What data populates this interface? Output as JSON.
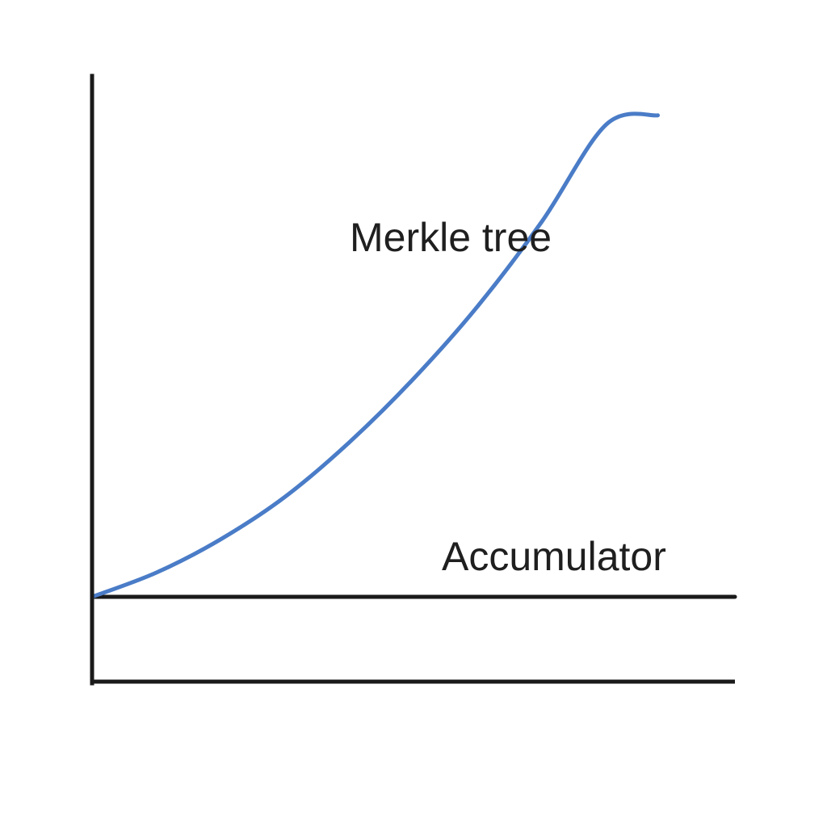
{
  "chart_data": {
    "type": "line",
    "title": "",
    "xlabel": "",
    "ylabel": "",
    "grid": false,
    "legend": "none",
    "xlim": [
      0,
      100
    ],
    "ylim": [
      0,
      100
    ],
    "series": [
      {
        "name": "Merkle tree",
        "color": "#4a7cc7",
        "x": [
          0,
          10,
          20,
          30,
          40,
          50,
          60,
          70,
          80,
          88
        ],
        "y": [
          14,
          18,
          23.5,
          30.5,
          39.5,
          50,
          62,
          76,
          92,
          93.5
        ]
      },
      {
        "name": "Accumulator",
        "color": "#1a1a1a",
        "x": [
          0,
          100
        ],
        "y": [
          14,
          14
        ]
      }
    ]
  }
}
